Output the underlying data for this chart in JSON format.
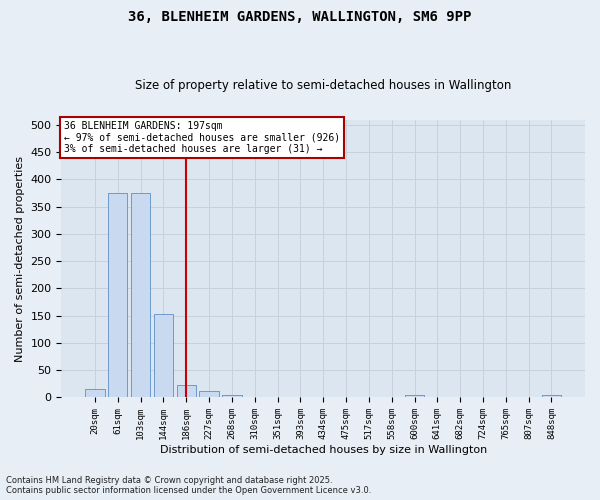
{
  "title": "36, BLENHEIM GARDENS, WALLINGTON, SM6 9PP",
  "subtitle": "Size of property relative to semi-detached houses in Wallington",
  "xlabel": "Distribution of semi-detached houses by size in Wallington",
  "ylabel": "Number of semi-detached properties",
  "categories": [
    "20sqm",
    "61sqm",
    "103sqm",
    "144sqm",
    "186sqm",
    "227sqm",
    "268sqm",
    "310sqm",
    "351sqm",
    "393sqm",
    "434sqm",
    "475sqm",
    "517sqm",
    "558sqm",
    "600sqm",
    "641sqm",
    "682sqm",
    "724sqm",
    "765sqm",
    "807sqm",
    "848sqm"
  ],
  "values": [
    15,
    375,
    375,
    153,
    23,
    12,
    4,
    0,
    0,
    0,
    0,
    0,
    0,
    0,
    5,
    0,
    0,
    0,
    0,
    0,
    4
  ],
  "bar_color": "#c9d9f0",
  "bar_edge_color": "#5b8fc9",
  "grid_color": "#c8d0dc",
  "background_color": "#dce6f0",
  "fig_background_color": "#e8eef5",
  "red_line_x": 4.5,
  "property_label": "36 BLENHEIM GARDENS: 197sqm",
  "smaller_label": "← 97% of semi-detached houses are smaller (926)",
  "larger_label": "3% of semi-detached houses are larger (31) →",
  "annotation_box_edge_color": "#aa0000",
  "ylim": [
    0,
    510
  ],
  "yticks": [
    0,
    50,
    100,
    150,
    200,
    250,
    300,
    350,
    400,
    450,
    500
  ],
  "footnote1": "Contains HM Land Registry data © Crown copyright and database right 2025.",
  "footnote2": "Contains public sector information licensed under the Open Government Licence v3.0."
}
